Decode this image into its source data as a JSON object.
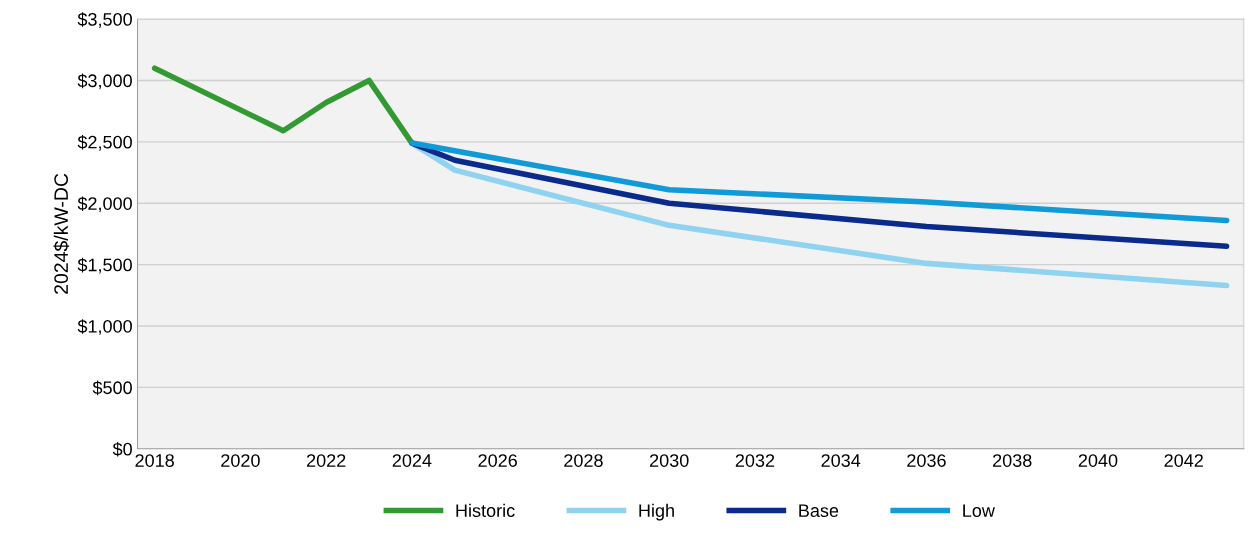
{
  "chart_data": {
    "type": "line",
    "ylabel": "2024$/kW-DC",
    "series": [
      {
        "name": "Historic",
        "color": "#339933",
        "x": [
          2018,
          2021,
          2022,
          2023,
          2024
        ],
        "values": [
          3100,
          2590,
          2820,
          3000,
          2490
        ]
      },
      {
        "name": "High",
        "color": "#8fd3f0",
        "x": [
          2024,
          2025,
          2030,
          2036,
          2043
        ],
        "values": [
          2490,
          2270,
          1820,
          1510,
          1330
        ]
      },
      {
        "name": "Base",
        "color": "#0a2a8c",
        "x": [
          2024,
          2025,
          2030,
          2036,
          2043
        ],
        "values": [
          2490,
          2350,
          2000,
          1810,
          1650
        ]
      },
      {
        "name": "Low",
        "color": "#109ad8",
        "x": [
          2024,
          2030,
          2036,
          2043
        ],
        "values": [
          2490,
          2110,
          2010,
          1860
        ]
      }
    ],
    "xlim": [
      2017.6,
      2043.4
    ],
    "xticks": [
      2018,
      2020,
      2022,
      2024,
      2026,
      2028,
      2030,
      2032,
      2034,
      2036,
      2038,
      2040,
      2042
    ],
    "ylim": [
      0,
      3500
    ],
    "yticks": [
      {
        "value": 0,
        "label": "$0"
      },
      {
        "value": 500,
        "label": "$500"
      },
      {
        "value": 1000,
        "label": "$1,000"
      },
      {
        "value": 1500,
        "label": "$1,500"
      },
      {
        "value": 2000,
        "label": "$2,000"
      },
      {
        "value": 2500,
        "label": "$2,500"
      },
      {
        "value": 3000,
        "label": "$3,000"
      },
      {
        "value": 3500,
        "label": "$3,500"
      }
    ],
    "grid": "y",
    "legend": "bottom",
    "marker": "none",
    "line_style": "solid"
  }
}
